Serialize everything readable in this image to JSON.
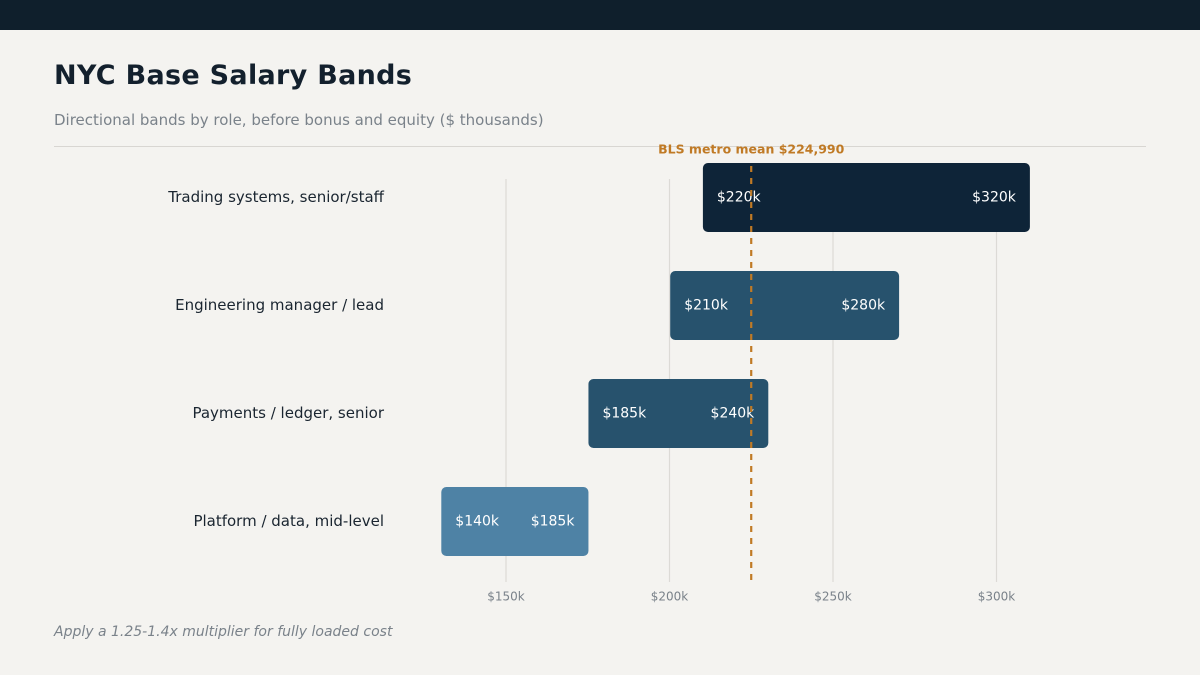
{
  "header": {
    "title": "NYC Base Salary Bands",
    "subtitle": "Directional bands by role, before bonus and equity ($ thousands)"
  },
  "footnote": "Apply a 1.25-1.4x multiplier for fully loaded cost",
  "chart_data": {
    "type": "range-bar",
    "orientation": "horizontal",
    "categories": [
      "Trading systems, senior/staff",
      "Engineering manager / lead",
      "Payments / ledger, senior",
      "Platform / data, mid-level"
    ],
    "ranges": [
      {
        "low": 220,
        "high": 320,
        "low_label": "$220k",
        "high_label": "$320k",
        "color": "#0e2438"
      },
      {
        "low": 210,
        "high": 280,
        "low_label": "$210k",
        "high_label": "$280k",
        "color": "#27526d"
      },
      {
        "low": 185,
        "high": 240,
        "low_label": "$185k",
        "high_label": "$240k",
        "color": "#27526d"
      },
      {
        "low": 140,
        "high": 185,
        "low_label": "$140k",
        "high_label": "$185k",
        "color": "#4e82a5"
      }
    ],
    "xticks": [
      150,
      200,
      250,
      300
    ],
    "xtick_labels": [
      "$150k",
      "$200k",
      "$250k",
      "$300k"
    ],
    "reference_line": {
      "value": 224.99,
      "label": "BLS metro mean  $224,990",
      "color": "#c07a25"
    },
    "grid": true,
    "grid_color": "#dcdad6"
  }
}
